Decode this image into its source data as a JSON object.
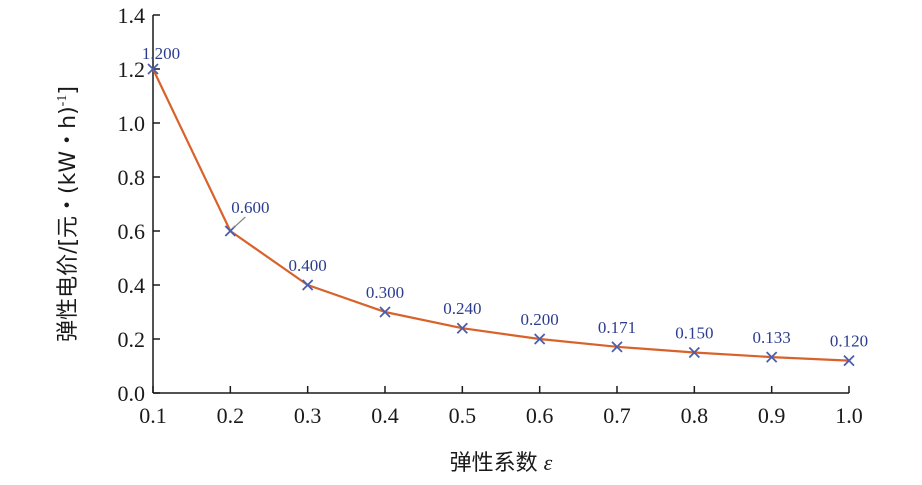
{
  "chart_data": {
    "type": "line",
    "title": "",
    "xlabel": "弹性系数",
    "xlabel_symbol": "ε",
    "ylabel": "弹性电价/[元・(kW・h)",
    "ylabel_sup": "-1",
    "ylabel_close": "]",
    "xlim": [
      0.1,
      1.0
    ],
    "ylim": [
      0.0,
      1.4
    ],
    "x_ticks": [
      "0.1",
      "0.2",
      "0.3",
      "0.4",
      "0.5",
      "0.6",
      "0.7",
      "0.8",
      "0.9",
      "1.0"
    ],
    "y_ticks": [
      "0.0",
      "0.2",
      "0.4",
      "0.6",
      "0.8",
      "1.0",
      "1.2",
      "1.4"
    ],
    "grid": false,
    "series": [
      {
        "x": [
          0.1,
          0.2,
          0.3,
          0.4,
          0.5,
          0.6,
          0.7,
          0.8,
          0.9,
          1.0
        ],
        "y": [
          1.2,
          0.6,
          0.4,
          0.3,
          0.24,
          0.2,
          0.171,
          0.15,
          0.133,
          0.12
        ],
        "labels": [
          "1.200",
          "0.600",
          "0.400",
          "0.300",
          "0.240",
          "0.200",
          "0.171",
          "0.150",
          "0.133",
          "0.120"
        ],
        "line_color": "#d9622b",
        "marker_color": "#4a5eab",
        "marker": "x"
      }
    ],
    "label_color": "#2b3c8f"
  }
}
